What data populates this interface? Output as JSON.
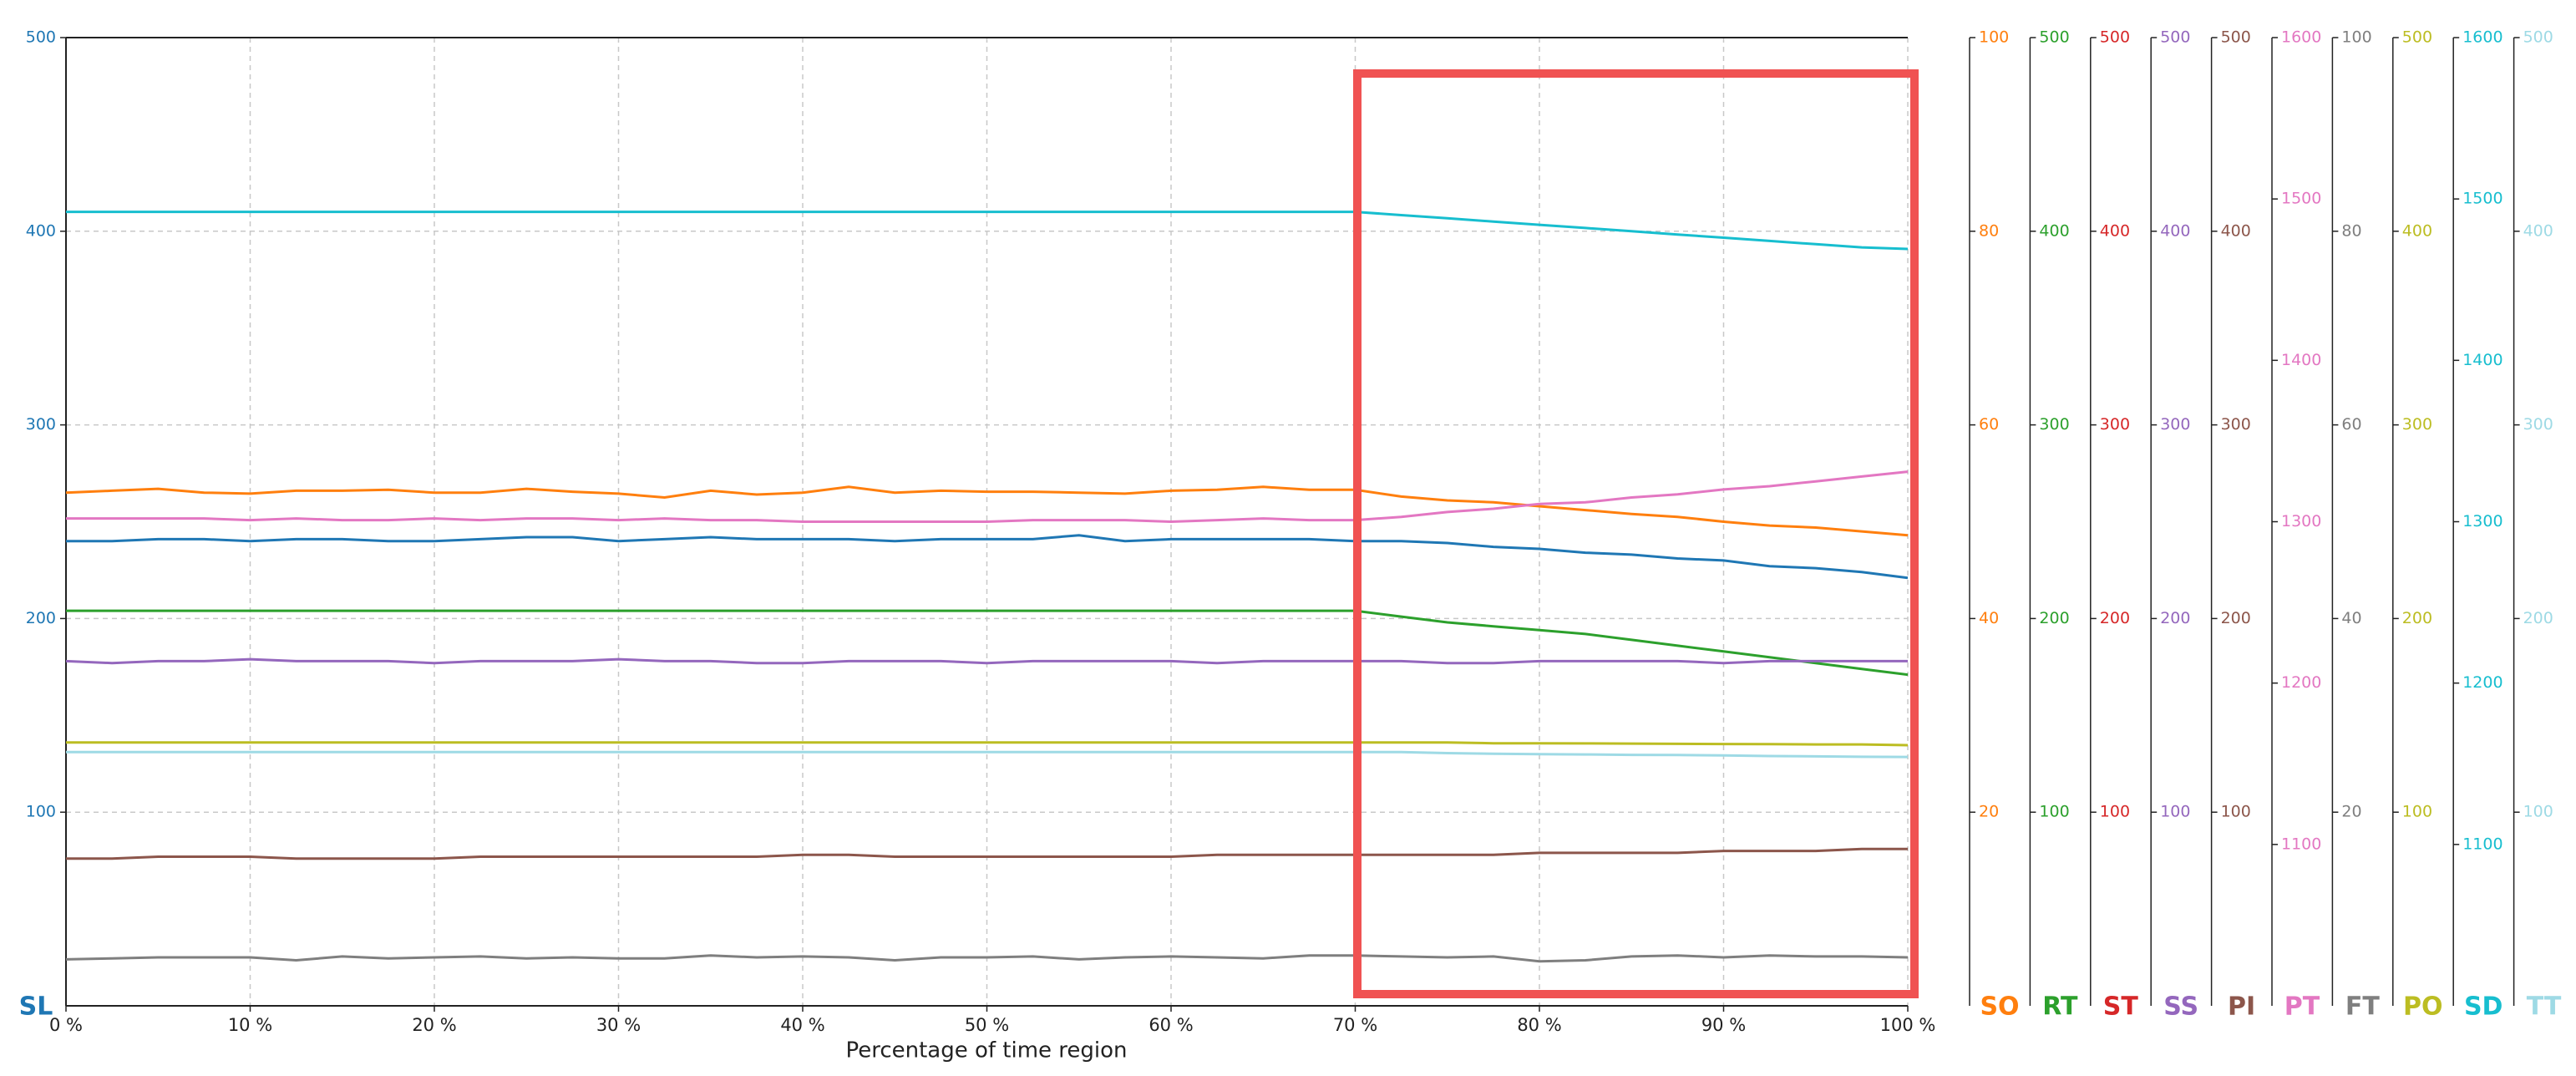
{
  "chart_data": {
    "type": "line",
    "xlabel": "Percentage of time region",
    "x": [
      0,
      2.5,
      5,
      7.5,
      10,
      12.5,
      15,
      17.5,
      20,
      22.5,
      25,
      27.5,
      30,
      32.5,
      35,
      37.5,
      40,
      42.5,
      45,
      47.5,
      50,
      52.5,
      55,
      57.5,
      60,
      62.5,
      65,
      67.5,
      70,
      72.5,
      75,
      77.5,
      80,
      82.5,
      85,
      87.5,
      90,
      92.5,
      95,
      97.5,
      100
    ],
    "xlim": [
      0,
      100
    ],
    "xticks": [
      {
        "value": 0,
        "label": "0 %"
      },
      {
        "value": 10,
        "label": "10 %"
      },
      {
        "value": 20,
        "label": "20 %"
      },
      {
        "value": 30,
        "label": "30 %"
      },
      {
        "value": 40,
        "label": "40 %"
      },
      {
        "value": 50,
        "label": "50 %"
      },
      {
        "value": 60,
        "label": "60 %"
      },
      {
        "value": 70,
        "label": "70 %"
      },
      {
        "value": 80,
        "label": "80 %"
      },
      {
        "value": 90,
        "label": "90 %"
      },
      {
        "value": 100,
        "label": "100 %"
      }
    ],
    "grid": true,
    "series": [
      {
        "name": "SL",
        "color": "#1f77b4",
        "ylim": [
          0,
          500
        ],
        "yticks": [
          100,
          200,
          300,
          400,
          500
        ],
        "values": [
          240,
          240,
          241,
          241,
          240,
          241,
          241,
          240,
          240,
          241,
          242,
          242,
          240,
          241,
          242,
          241,
          241,
          241,
          240,
          241,
          241,
          241,
          243,
          240,
          241,
          241,
          241,
          241,
          240,
          240,
          239,
          237,
          236,
          234,
          233,
          231,
          230,
          227,
          226,
          224,
          221
        ]
      },
      {
        "name": "SO",
        "color": "#ff7f0e",
        "ylim": [
          0,
          100
        ],
        "yticks": [
          20,
          40,
          60,
          80,
          100
        ],
        "values": [
          53,
          53.2,
          53.4,
          53,
          52.9,
          53.2,
          53.2,
          53.3,
          53,
          53,
          53.4,
          53.1,
          52.9,
          52.5,
          53.2,
          52.8,
          53,
          53.6,
          53,
          53.2,
          53.1,
          53.1,
          53,
          52.9,
          53.2,
          53.3,
          53.6,
          53.3,
          53.3,
          52.6,
          52.2,
          52,
          51.6,
          51.2,
          50.8,
          50.5,
          50,
          49.6,
          49.4,
          49,
          48.6
        ]
      },
      {
        "name": "RT",
        "color": "#2ca02c",
        "ylim": [
          0,
          500
        ],
        "yticks": [
          100,
          200,
          300,
          400,
          500
        ],
        "values": [
          204,
          204,
          204,
          204,
          204,
          204,
          204,
          204,
          204,
          204,
          204,
          204,
          204,
          204,
          204,
          204,
          204,
          204,
          204,
          204,
          204,
          204,
          204,
          204,
          204,
          204,
          204,
          204,
          204,
          201,
          198,
          196,
          194,
          192,
          189,
          186,
          183,
          180,
          177,
          174,
          171
        ]
      },
      {
        "name": "ST",
        "color": "#d62728",
        "ylim": [
          0,
          500
        ],
        "yticks": [
          100,
          200,
          300,
          400,
          500
        ],
        "values": [
          null,
          null,
          null,
          null,
          null,
          null,
          null,
          null,
          null,
          null,
          null,
          null,
          null,
          null,
          null,
          null,
          null,
          null,
          null,
          null,
          null,
          null,
          null,
          null,
          null,
          null,
          null,
          null,
          null,
          null,
          null,
          null,
          null,
          null,
          null,
          null,
          null,
          null,
          null,
          null,
          null
        ]
      },
      {
        "name": "SS",
        "color": "#9467bd",
        "ylim": [
          0,
          500
        ],
        "yticks": [
          100,
          200,
          300,
          400,
          500
        ],
        "values": [
          178,
          177,
          178,
          178,
          179,
          178,
          178,
          178,
          177,
          178,
          178,
          178,
          179,
          178,
          178,
          177,
          177,
          178,
          178,
          178,
          177,
          178,
          178,
          178,
          178,
          177,
          178,
          178,
          178,
          178,
          177,
          177,
          178,
          178,
          178,
          178,
          177,
          178,
          178,
          178,
          178
        ]
      },
      {
        "name": "PI",
        "color": "#8c564b",
        "ylim": [
          0,
          500
        ],
        "yticks": [
          100,
          200,
          300,
          400,
          500
        ],
        "values": [
          76,
          76,
          77,
          77,
          77,
          76,
          76,
          76,
          76,
          77,
          77,
          77,
          77,
          77,
          77,
          77,
          78,
          78,
          77,
          77,
          77,
          77,
          77,
          77,
          77,
          78,
          78,
          78,
          78,
          78,
          78,
          78,
          79,
          79,
          79,
          79,
          80,
          80,
          80,
          81,
          81
        ]
      },
      {
        "name": "PT",
        "color": "#e377c2",
        "ylim": [
          1000,
          1600
        ],
        "yticks": [
          1100,
          1200,
          1300,
          1400,
          1500,
          1600
        ],
        "values": [
          1302,
          1302,
          1302,
          1302,
          1301,
          1302,
          1301,
          1301,
          1302,
          1301,
          1302,
          1302,
          1301,
          1302,
          1301,
          1301,
          1300,
          1300,
          1300,
          1300,
          1300,
          1301,
          1301,
          1301,
          1300,
          1301,
          1302,
          1301,
          1301,
          1303,
          1306,
          1308,
          1311,
          1312,
          1315,
          1317,
          1320,
          1322,
          1325,
          1328,
          1331
        ]
      },
      {
        "name": "FT",
        "color": "#7f7f7f",
        "ylim": [
          0,
          100
        ],
        "yticks": [
          20,
          40,
          60,
          80,
          100
        ],
        "values": [
          4.8,
          4.9,
          5,
          5,
          5,
          4.7,
          5.1,
          4.9,
          5,
          5.1,
          4.9,
          5,
          4.9,
          4.9,
          5.2,
          5,
          5.1,
          5,
          4.7,
          5,
          5,
          5.1,
          4.8,
          5,
          5.1,
          5,
          4.9,
          5.2,
          5.2,
          5.1,
          5,
          5.1,
          4.6,
          4.7,
          5.1,
          5.2,
          5,
          5.2,
          5.1,
          5.1,
          5
        ]
      },
      {
        "name": "PO",
        "color": "#bcbd22",
        "ylim": [
          0,
          500
        ],
        "yticks": [
          100,
          200,
          300,
          400,
          500
        ],
        "values": [
          136,
          136,
          136,
          136,
          136,
          136,
          136,
          136,
          136,
          136,
          136,
          136,
          136,
          136,
          136,
          136,
          136,
          136,
          136,
          136,
          136,
          136,
          136,
          136,
          136,
          136,
          136,
          136,
          136,
          136,
          136,
          135.6,
          135.6,
          135.5,
          135.4,
          135.3,
          135.2,
          135.1,
          135,
          135,
          134.6
        ]
      },
      {
        "name": "SD",
        "color": "#17becf",
        "ylim": [
          1000,
          1600
        ],
        "yticks": [
          1100,
          1200,
          1300,
          1400,
          1500,
          1600
        ],
        "values": [
          1492,
          1492,
          1492,
          1492,
          1492,
          1492,
          1492,
          1492,
          1492,
          1492,
          1492,
          1492,
          1492,
          1492,
          1492,
          1492,
          1492,
          1492,
          1492,
          1492,
          1492,
          1492,
          1492,
          1492,
          1492,
          1492,
          1492,
          1492,
          1492,
          1490,
          1488,
          1486,
          1484,
          1482,
          1480,
          1478,
          1476,
          1474,
          1472,
          1470,
          1469
        ]
      },
      {
        "name": "TT",
        "color": "#9edae5",
        "ylim": [
          0,
          500
        ],
        "yticks": [
          100,
          200,
          300,
          400,
          500
        ],
        "values": [
          131,
          131,
          131,
          131,
          131,
          131,
          131,
          131,
          131,
          131,
          131,
          131,
          131,
          131,
          131,
          131,
          131,
          131,
          131,
          131,
          131,
          131,
          131,
          131,
          131,
          131,
          131,
          131,
          131,
          131,
          130.5,
          130.2,
          130,
          129.8,
          129.6,
          129.5,
          129.3,
          129,
          128.8,
          128.6,
          128.5
        ]
      }
    ]
  }
}
